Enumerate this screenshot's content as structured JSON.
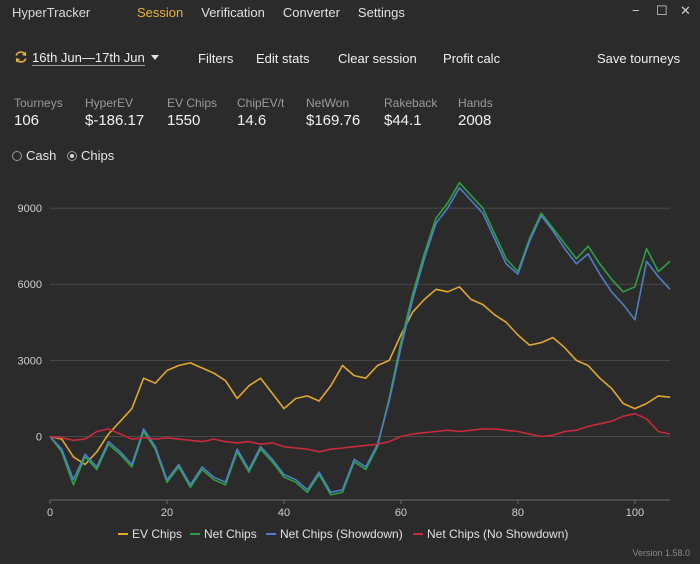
{
  "app": {
    "title": "HyperTracker",
    "nav": [
      "Session",
      "Verification",
      "Converter",
      "Settings"
    ],
    "active_nav": "Session",
    "minimize_glyph": "−",
    "maximize_glyph": "☐",
    "close_glyph": "✕",
    "version": "Version 1.58.0"
  },
  "toolbar": {
    "date_range": "16th Jun—17th Jun",
    "filters": "Filters",
    "edit_stats": "Edit stats",
    "clear_session": "Clear session",
    "profit_calc": "Profit calc",
    "save_tourneys": "Save tourneys"
  },
  "stats": [
    {
      "label": "Tourneys",
      "value": "106"
    },
    {
      "label": "HyperEV",
      "value": "$-186.17"
    },
    {
      "label": "EV Chips",
      "value": "1550"
    },
    {
      "label": "ChipEV/t",
      "value": "14.6"
    },
    {
      "label": "NetWon",
      "value": "$169.76"
    },
    {
      "label": "Rakeback",
      "value": "$44.1"
    },
    {
      "label": "Hands",
      "value": "2008"
    }
  ],
  "mode": {
    "cash_label": "Cash",
    "chips_label": "Chips",
    "selected": "Chips"
  },
  "chart_data": {
    "type": "line",
    "x_ticks": [
      0,
      20,
      40,
      60,
      80,
      100
    ],
    "y_ticks": [
      0,
      3000,
      6000,
      9000
    ],
    "xlim": [
      0,
      106
    ],
    "ylim": [
      -2500,
      10500
    ],
    "grid": "horizontal",
    "legend_position": "bottom",
    "series": [
      {
        "name": "EV Chips",
        "color": "#e0a82e",
        "x": [
          0,
          2,
          4,
          6,
          8,
          10,
          12,
          14,
          16,
          18,
          20,
          22,
          24,
          26,
          28,
          30,
          32,
          34,
          36,
          38,
          40,
          42,
          44,
          46,
          48,
          50,
          52,
          54,
          56,
          58,
          60,
          62,
          64,
          66,
          68,
          70,
          72,
          74,
          76,
          78,
          80,
          82,
          84,
          86,
          88,
          90,
          92,
          94,
          96,
          98,
          100,
          102,
          104,
          106
        ],
        "y": [
          0,
          -100,
          -800,
          -1100,
          -600,
          100,
          600,
          1100,
          2300,
          2100,
          2600,
          2800,
          2900,
          2700,
          2500,
          2200,
          1500,
          2000,
          2300,
          1700,
          1100,
          1500,
          1600,
          1400,
          2000,
          2800,
          2400,
          2300,
          2800,
          3000,
          4000,
          4900,
          5400,
          5800,
          5700,
          5900,
          5400,
          5200,
          4800,
          4500,
          4000,
          3600,
          3700,
          3900,
          3500,
          3000,
          2800,
          2300,
          1900,
          1300,
          1100,
          1300,
          1600,
          1550
        ]
      },
      {
        "name": "Net Chips",
        "color": "#2ea043",
        "x": [
          0,
          2,
          4,
          6,
          8,
          10,
          12,
          14,
          16,
          18,
          20,
          22,
          24,
          26,
          28,
          30,
          32,
          34,
          36,
          38,
          40,
          42,
          44,
          46,
          48,
          50,
          52,
          54,
          56,
          58,
          60,
          62,
          64,
          66,
          68,
          70,
          72,
          74,
          76,
          78,
          80,
          82,
          84,
          86,
          88,
          90,
          92,
          94,
          96,
          98,
          100,
          102,
          104,
          106
        ],
        "y": [
          0,
          -600,
          -1900,
          -800,
          -1300,
          -300,
          -700,
          -1200,
          200,
          -500,
          -1800,
          -1200,
          -2000,
          -1300,
          -1700,
          -1900,
          -600,
          -1400,
          -500,
          -1000,
          -1600,
          -1800,
          -2200,
          -1500,
          -2300,
          -2200,
          -1000,
          -1300,
          -400,
          1500,
          3700,
          5600,
          7200,
          8600,
          9200,
          10000,
          9500,
          9000,
          8000,
          7000,
          6500,
          7800,
          8800,
          8200,
          7600,
          7000,
          7500,
          6800,
          6200,
          5700,
          5900,
          7400,
          6500,
          6900
        ]
      },
      {
        "name": "Net Chips (Showdown)",
        "color": "#4e7fc4",
        "x": [
          0,
          2,
          4,
          6,
          8,
          10,
          12,
          14,
          16,
          18,
          20,
          22,
          24,
          26,
          28,
          30,
          32,
          34,
          36,
          38,
          40,
          42,
          44,
          46,
          48,
          50,
          52,
          54,
          56,
          58,
          60,
          62,
          64,
          66,
          68,
          70,
          72,
          74,
          76,
          78,
          80,
          82,
          84,
          86,
          88,
          90,
          92,
          94,
          96,
          98,
          100,
          102,
          104,
          106
        ],
        "y": [
          0,
          -500,
          -1700,
          -700,
          -1200,
          -200,
          -600,
          -1100,
          300,
          -400,
          -1700,
          -1100,
          -1900,
          -1200,
          -1600,
          -1800,
          -500,
          -1300,
          -400,
          -900,
          -1500,
          -1700,
          -2100,
          -1400,
          -2200,
          -2100,
          -900,
          -1200,
          -300,
          1400,
          3500,
          5400,
          7000,
          8400,
          9000,
          9800,
          9300,
          8800,
          7800,
          6800,
          6400,
          7700,
          8700,
          8100,
          7400,
          6800,
          7200,
          6400,
          5700,
          5200,
          4600,
          6900,
          6300,
          5800
        ]
      },
      {
        "name": "Net Chips (No Showdown)",
        "color": "#c8293c",
        "x": [
          0,
          2,
          4,
          6,
          8,
          10,
          12,
          14,
          16,
          18,
          20,
          22,
          24,
          26,
          28,
          30,
          32,
          34,
          36,
          38,
          40,
          42,
          44,
          46,
          48,
          50,
          52,
          54,
          56,
          58,
          60,
          62,
          64,
          66,
          68,
          70,
          72,
          74,
          76,
          78,
          80,
          82,
          84,
          86,
          88,
          90,
          92,
          94,
          96,
          98,
          100,
          102,
          104,
          106
        ],
        "y": [
          0,
          -50,
          -150,
          -100,
          200,
          300,
          100,
          -100,
          -50,
          -100,
          -50,
          -100,
          -150,
          -200,
          -100,
          -200,
          -250,
          -200,
          -300,
          -250,
          -400,
          -450,
          -500,
          -600,
          -500,
          -450,
          -400,
          -350,
          -300,
          -200,
          0,
          100,
          150,
          200,
          250,
          200,
          250,
          300,
          300,
          250,
          200,
          100,
          0,
          50,
          200,
          250,
          400,
          500,
          600,
          800,
          900,
          700,
          200,
          100
        ]
      }
    ]
  }
}
